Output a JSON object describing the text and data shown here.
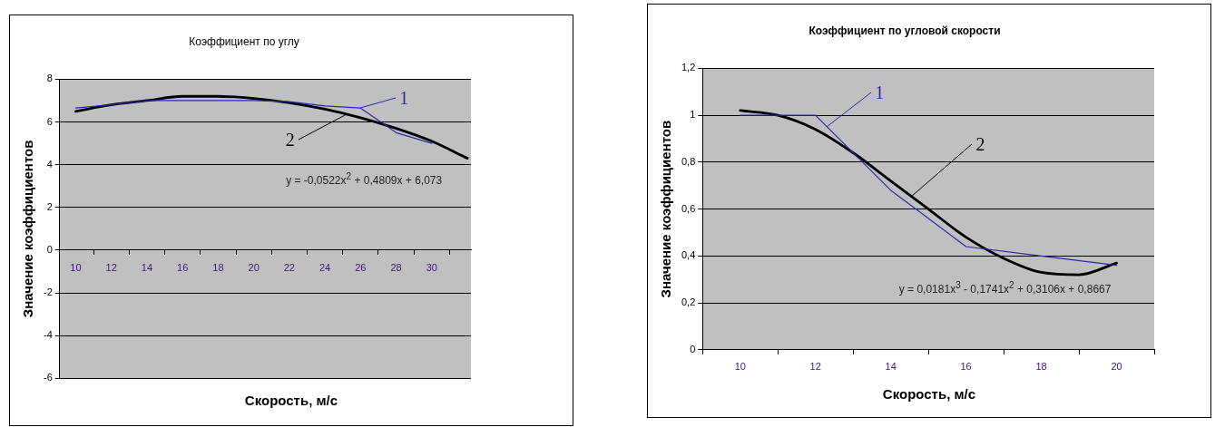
{
  "chart_data": [
    {
      "type": "line",
      "title": "Коэффициент по углу",
      "xlabel": "Скорость, м/с",
      "ylabel": "Значение коэффициентов",
      "xlim": [
        9.1,
        32.2
      ],
      "xticks": [
        10,
        {
          "value": 11,
          "label": null
        },
        12,
        {
          "value": 13,
          "label": null
        },
        14,
        {
          "value": 15,
          "label": null
        },
        16,
        {
          "value": 17,
          "label": null
        },
        18,
        {
          "value": 19,
          "label": null
        },
        20,
        {
          "value": 21,
          "label": null
        },
        22,
        {
          "value": 23,
          "label": null
        },
        24,
        {
          "value": 25,
          "label": null
        },
        26,
        {
          "value": 27,
          "label": null
        },
        28,
        {
          "value": 29,
          "label": null
        },
        30,
        {
          "value": 31,
          "label": null
        }
      ],
      "ylim": [
        -6,
        8
      ],
      "yticks": [
        -6,
        -4,
        -2,
        0,
        2,
        4,
        6,
        8
      ],
      "grid": "y",
      "series": [
        {
          "name": "1",
          "color": "#2a2aa8",
          "x": [
            10,
            12,
            14,
            16,
            18,
            20,
            22,
            24,
            26,
            28,
            30
          ],
          "values": [
            6.65,
            6.8,
            7.0,
            7.0,
            7.0,
            7.0,
            6.95,
            6.75,
            6.65,
            5.5,
            5.0
          ]
        },
        {
          "name": "2",
          "color": "#000000",
          "x": [
            10,
            12,
            14,
            16,
            18,
            20,
            22,
            24,
            26,
            28,
            30,
            32
          ],
          "values": [
            6.5,
            6.8,
            7.0,
            7.2,
            7.2,
            7.1,
            6.9,
            6.6,
            6.2,
            5.7,
            5.1,
            4.3
          ]
        }
      ],
      "annotations": [
        "y = -0,0522x$^{2}$ + 0,4809x + 6,073"
      ]
    },
    {
      "type": "line",
      "title": "Коэффициент по угловой скорости",
      "xlabel": "Скорость, м/с",
      "ylabel": "Значение коэффициентов",
      "xlim": [
        9,
        21
      ],
      "xticks": [
        {
          "value": 9,
          "label": null
        },
        10,
        {
          "value": 11,
          "label": null
        },
        12,
        {
          "value": 13,
          "label": null
        },
        14,
        {
          "value": 15,
          "label": null
        },
        16,
        {
          "value": 17,
          "label": null
        },
        18,
        {
          "value": 19,
          "label": null
        },
        20,
        {
          "value": 21,
          "label": null
        }
      ],
      "ylim": [
        0,
        1.2
      ],
      "yticks": [
        0,
        {
          "value": 0.2,
          "label": "0,2"
        },
        {
          "value": 0.4,
          "label": "0,4"
        },
        {
          "value": 0.6,
          "label": "0,6"
        },
        {
          "value": 0.8,
          "label": "0,8"
        },
        1,
        {
          "value": 1.2,
          "label": "1,2"
        }
      ],
      "grid": "y",
      "series": [
        {
          "name": "1",
          "color": "#2a2aa8",
          "x": [
            10,
            12,
            14,
            16,
            18,
            20
          ],
          "values": [
            1.0,
            1.0,
            0.68,
            0.44,
            0.4,
            0.36
          ]
        },
        {
          "name": "2",
          "color": "#000000",
          "x": [
            10,
            11,
            12,
            13,
            14,
            15,
            16,
            17,
            18,
            19,
            20
          ],
          "values": [
            1.02,
            1.0,
            0.94,
            0.84,
            0.72,
            0.6,
            0.48,
            0.39,
            0.33,
            0.32,
            0.37
          ]
        }
      ],
      "annotations": [
        "y = 0,0181x$^{3}$ - 0,1741x$^{2}$ + 0,3106x + 0,8667"
      ]
    }
  ]
}
